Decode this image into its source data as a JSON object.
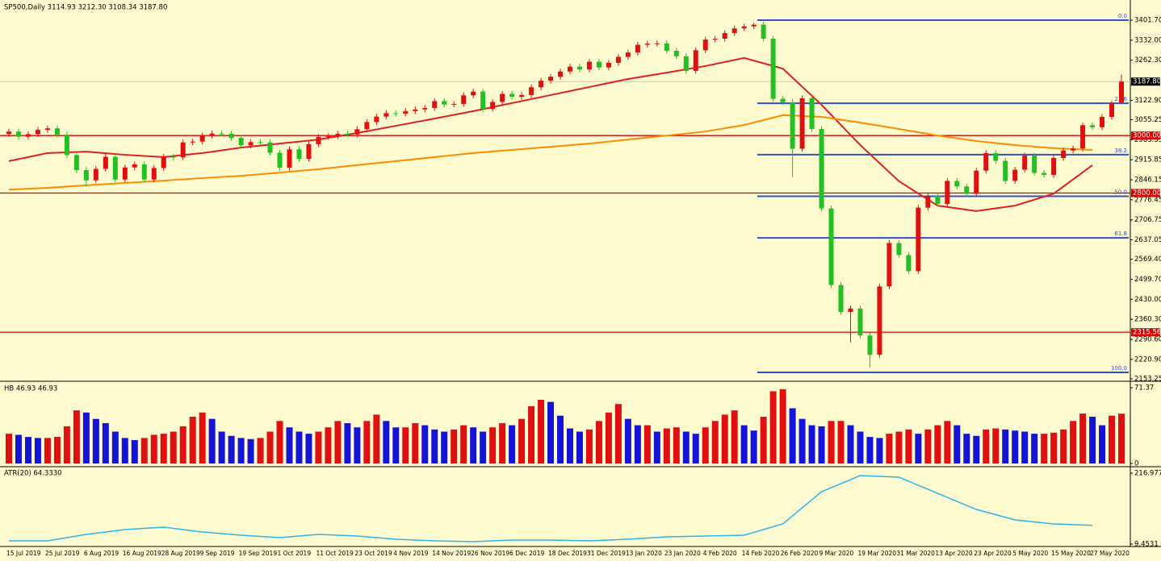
{
  "chart_data": [
    {
      "type": "candlestick",
      "title": "SP500,Daily  3114.93 3212.30 3108.34 3187.80",
      "categories": [
        "15 Jul 2019",
        null,
        null,
        null,
        "25 Jul 2019",
        null,
        null,
        null,
        "6 Aug 2019",
        null,
        null,
        null,
        "16 Aug 2019",
        null,
        null,
        null,
        "28 Aug 2019",
        null,
        null,
        null,
        "9 Sep 2019",
        null,
        null,
        null,
        "19 Sep 2019",
        null,
        null,
        null,
        "1 Oct 2019",
        null,
        null,
        null,
        "11 Oct 2019",
        null,
        null,
        null,
        "23 Oct 2019",
        null,
        null,
        null,
        "4 Nov 2019",
        null,
        null,
        null,
        "14 Nov 2019",
        null,
        null,
        null,
        "26 Nov 2019",
        null,
        null,
        null,
        "6 Dec 2019",
        null,
        null,
        null,
        "18 Dec 2019",
        null,
        null,
        null,
        "31 Dec 2019",
        null,
        null,
        null,
        "13 Jan 2020",
        null,
        null,
        null,
        "23 Jan 2020",
        null,
        null,
        null,
        "4 Feb 2020",
        null,
        null,
        null,
        "14 Feb 2020",
        null,
        null,
        null,
        "26 Feb 2020",
        null,
        null,
        null,
        "9 Mar 2020",
        null,
        null,
        null,
        "19 Mar 2020",
        null,
        null,
        null,
        "31 Mar 2020",
        null,
        null,
        null,
        "13 Apr 2020",
        null,
        null,
        null,
        "23 Apr 2020",
        null,
        null,
        null,
        "5 May 2020",
        null,
        null,
        null,
        "15 May 2020",
        null,
        null,
        null,
        "27 May 2020",
        null,
        null,
        null
      ],
      "open": [
        3005,
        3014,
        2996,
        3005,
        3020,
        3025,
        3003,
        2932,
        2880,
        2844,
        2884,
        2926,
        2847,
        2889,
        2900,
        2847,
        2887,
        2926,
        2924,
        2976,
        2979,
        3000,
        3007,
        3006,
        2992,
        2966,
        2977,
        2976,
        2940,
        2888,
        2952,
        2919,
        2970,
        2995,
        2998,
        3006,
        3004,
        3022,
        3047,
        3066,
        3078,
        3076,
        3085,
        3091,
        3096,
        3120,
        3108,
        3110,
        3140,
        3153,
        3093,
        3117,
        3145,
        3135,
        3141,
        3168,
        3191,
        3205,
        3223,
        3240,
        3230,
        3257,
        3237,
        3253,
        3274,
        3289,
        3316,
        3320,
        3321,
        3295,
        3276,
        3225,
        3297,
        3334,
        3337,
        3357,
        3373,
        3380,
        3386,
        3337,
        3128,
        3116,
        2954,
        3130,
        3023,
        2746,
        2480,
        2386,
        2398,
        2304,
        2237,
        2475,
        2626,
        2584,
        2528,
        2749,
        2790,
        2762,
        2842,
        2823,
        2797,
        2878,
        2939,
        2912,
        2842,
        2881,
        2930,
        2870,
        2863,
        2922,
        2948,
        2955,
        3036,
        3029,
        3065,
        3114.93
      ],
      "high": [
        3024,
        3024,
        3015,
        3030,
        3035,
        3035,
        3013,
        2942,
        2890,
        2894,
        2936,
        2936,
        2899,
        2910,
        2910,
        2897,
        2936,
        2936,
        2986,
        2989,
        3010,
        3017,
        3017,
        3016,
        3002,
        2987,
        2987,
        2986,
        2950,
        2962,
        2962,
        2980,
        3005,
        3008,
        3016,
        3016,
        3032,
        3057,
        3076,
        3088,
        3088,
        3095,
        3101,
        3106,
        3130,
        3130,
        3120,
        3150,
        3163,
        3163,
        3127,
        3155,
        3155,
        3151,
        3178,
        3201,
        3215,
        3233,
        3250,
        3250,
        3267,
        3267,
        3263,
        3284,
        3299,
        3326,
        3330,
        3331,
        3331,
        3305,
        3286,
        3307,
        3344,
        3347,
        3367,
        3383,
        3390,
        3393,
        3396,
        3347,
        3138,
        3126,
        3140,
        3140,
        3033,
        2756,
        2490,
        2408,
        2408,
        2314,
        2485,
        2636,
        2636,
        2594,
        2759,
        2800,
        2800,
        2852,
        2852,
        2833,
        2888,
        2949,
        2949,
        2922,
        2891,
        2940,
        2940,
        2880,
        2932,
        2958,
        2965,
        3046,
        3046,
        3075,
        3122,
        3212.3
      ],
      "low": [
        2995,
        2986,
        2986,
        2995,
        3010,
        2993,
        2922,
        2870,
        2822,
        2834,
        2874,
        2837,
        2837,
        2879,
        2837,
        2837,
        2877,
        2914,
        2914,
        2966,
        2969,
        2990,
        2996,
        2982,
        2956,
        2956,
        2966,
        2930,
        2878,
        2878,
        2909,
        2909,
        2960,
        2985,
        2988,
        2994,
        2994,
        3012,
        3037,
        3056,
        3066,
        3066,
        3075,
        3081,
        3086,
        3098,
        3098,
        3100,
        3130,
        3083,
        3083,
        3107,
        3125,
        3125,
        3131,
        3158,
        3181,
        3195,
        3213,
        3220,
        3220,
        3227,
        3227,
        3243,
        3264,
        3279,
        3306,
        3310,
        3285,
        3266,
        3215,
        3215,
        3287,
        3324,
        3327,
        3347,
        3363,
        3370,
        3327,
        3118,
        3106,
        2855,
        2944,
        3013,
        2736,
        2470,
        2376,
        2280,
        2294,
        2192,
        2227,
        2465,
        2574,
        2518,
        2518,
        2739,
        2752,
        2752,
        2813,
        2787,
        2787,
        2868,
        2902,
        2832,
        2832,
        2871,
        2860,
        2853,
        2853,
        2912,
        2938,
        2945,
        3019,
        3019,
        3055,
        3108.34
      ],
      "close": [
        3014,
        2996,
        3005,
        3020,
        3025,
        3003,
        2932,
        2880,
        2844,
        2884,
        2926,
        2847,
        2889,
        2900,
        2847,
        2887,
        2926,
        2924,
        2976,
        2979,
        3000,
        3007,
        3006,
        2992,
        2966,
        2977,
        2976,
        2940,
        2888,
        2952,
        2919,
        2970,
        2995,
        2998,
        3006,
        3004,
        3022,
        3047,
        3066,
        3078,
        3076,
        3085,
        3091,
        3096,
        3120,
        3108,
        3110,
        3140,
        3153,
        3093,
        3117,
        3145,
        3135,
        3141,
        3168,
        3191,
        3205,
        3223,
        3240,
        3230,
        3257,
        3237,
        3253,
        3274,
        3289,
        3316,
        3320,
        3321,
        3295,
        3276,
        3225,
        3297,
        3334,
        3337,
        3357,
        3373,
        3380,
        3386,
        3337,
        3128,
        3116,
        2954,
        3130,
        3023,
        2746,
        2480,
        2386,
        2398,
        2304,
        2237,
        2475,
        2626,
        2584,
        2528,
        2749,
        2790,
        2762,
        2842,
        2823,
        2797,
        2878,
        2939,
        2912,
        2842,
        2881,
        2930,
        2870,
        2863,
        2922,
        2948,
        2955,
        3036,
        3029,
        3065,
        3112,
        3187.8
      ],
      "up_color": "#e01010",
      "down_color": "#22c022",
      "ylim": [
        2153.25,
        3401.7
      ],
      "yticks": [
        {
          "value": 3401.7,
          "label": "3401.70"
        },
        {
          "value": 3332,
          "label": "3332.00"
        },
        {
          "value": 3262.3,
          "label": "3262.30"
        },
        {
          "value": 3122.9,
          "label": "3122.90"
        },
        {
          "value": 3055.25,
          "label": "3055.25"
        },
        {
          "value": 2985.55,
          "label": "2985.55"
        },
        {
          "value": 2915.85,
          "label": "2915.85"
        },
        {
          "value": 2846.15,
          "label": "2846.15"
        },
        {
          "value": 2776.45,
          "label": "2776.45"
        },
        {
          "value": 2706.75,
          "label": "2706.75"
        },
        {
          "value": 2637.05,
          "label": "2637.05"
        },
        {
          "value": 2569.4,
          "label": "2569.40"
        },
        {
          "value": 2499.7,
          "label": "2499.70"
        },
        {
          "value": 2430,
          "label": "2430.00"
        },
        {
          "value": 2360.3,
          "label": "2360.30"
        },
        {
          "value": 2290.6,
          "label": "2290.60"
        },
        {
          "value": 2220.9,
          "label": "2220.90"
        },
        {
          "value": 2153.25,
          "label": "2153.25"
        }
      ],
      "current": {
        "value": 3187.8,
        "label": "3187.80"
      },
      "levels": [
        {
          "value": 3000,
          "label": "3000.00"
        },
        {
          "value": 2800,
          "label": "2800.00"
        },
        {
          "value": 2315.56,
          "label": "2315.56"
        }
      ],
      "level_color": "#e00000",
      "fib_levels": [
        {
          "value": 3401.7,
          "label": "0.0"
        },
        {
          "value": 3112.4,
          "label": "23.6"
        },
        {
          "value": 2933.4,
          "label": "38.2"
        },
        {
          "value": 2788.6,
          "label": "50.0"
        },
        {
          "value": 2644,
          "label": "61.8"
        },
        {
          "value": 2175.6,
          "label": "100.0"
        }
      ],
      "fib_color": "#2f4fd0",
      "overlays": [
        {
          "color": "#e02020",
          "values": [
            2911,
            2939,
            2944,
            2933,
            2925,
            2939,
            2958,
            2972,
            2986,
            3009,
            3034,
            3059,
            3085,
            3113,
            3141,
            3169,
            3197,
            3219,
            3242,
            3270,
            3233,
            3107,
            2967,
            2841,
            2756,
            2737,
            2756,
            2798,
            2897
          ]
        },
        {
          "color": "#ff8c00",
          "values": [
            2812,
            2818,
            2827,
            2835,
            2843,
            2852,
            2860,
            2871,
            2883,
            2897,
            2911,
            2925,
            2939,
            2950,
            2961,
            2972,
            2986,
            3000,
            3014,
            3037,
            3071,
            3065,
            3045,
            3023,
            3000,
            2981,
            2967,
            2956,
            2950
          ]
        }
      ]
    },
    {
      "type": "bar",
      "title": "HB 46.93 46.93",
      "values": [
        28,
        27,
        25,
        24,
        24,
        25,
        35,
        50,
        48,
        42,
        38,
        30,
        24,
        22,
        24,
        27,
        28,
        30,
        35,
        44,
        48,
        42,
        30,
        26,
        24,
        23,
        24,
        30,
        40,
        34,
        30,
        28,
        30,
        34,
        40,
        38,
        34,
        40,
        46,
        40,
        34,
        34,
        38,
        36,
        32,
        30,
        32,
        36,
        34,
        30,
        34,
        38,
        36,
        42,
        54,
        60,
        58,
        45,
        33,
        30,
        32,
        40,
        48,
        56,
        42,
        36,
        36,
        30,
        33,
        34,
        30,
        28,
        34,
        40,
        46,
        50,
        36,
        31,
        44,
        68,
        70,
        52,
        42,
        36,
        35,
        40,
        40,
        36,
        30,
        25,
        24,
        28,
        30,
        32,
        28,
        32,
        36,
        40,
        36,
        28,
        26,
        32,
        33,
        32,
        31,
        30,
        28,
        28,
        29,
        32,
        40,
        47,
        44,
        36,
        45,
        46.93
      ],
      "up_color": "#e01010",
      "down_color": "#1414d8",
      "ylim": [
        0,
        71.37
      ],
      "yticks": [
        71.37,
        0
      ]
    },
    {
      "type": "line",
      "title": "ATR(20) 64.3330",
      "values": [
        18.9,
        18.9,
        37.7,
        51.9,
        59.0,
        44.8,
        35.4,
        28.3,
        37.7,
        33.0,
        23.6,
        18.9,
        16.5,
        21.2,
        21.2,
        18.9,
        23.6,
        30.7,
        33.0,
        35.4,
        68.4,
        162.7,
        209.9,
        205.2,
        158.0,
        110.8,
        80.2,
        68.4,
        64.33
      ],
      "color": "#2cb4ee",
      "ylim": [
        9.4531,
        216.9774
      ],
      "yticks": [
        216.9774,
        9.4531
      ]
    }
  ]
}
